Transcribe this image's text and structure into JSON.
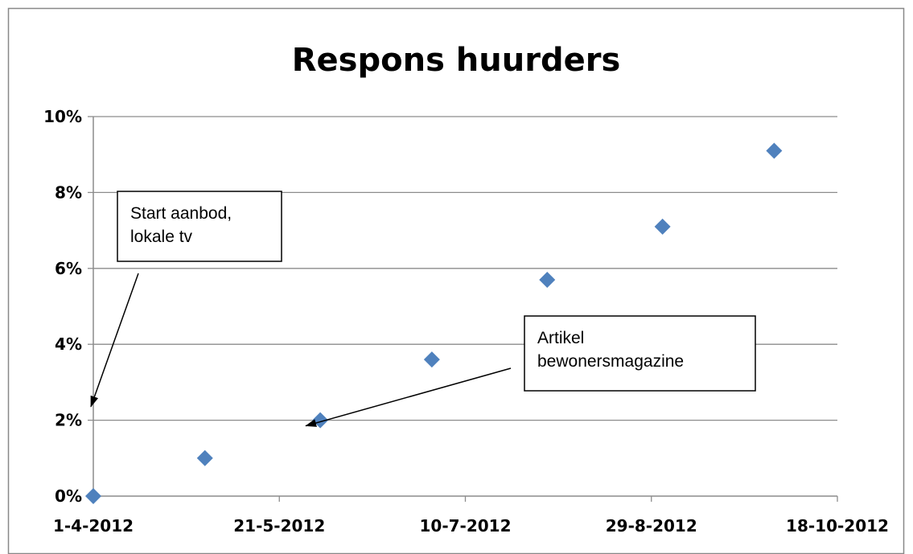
{
  "chart_data": {
    "type": "scatter",
    "title": "Respons huurders",
    "xlabel": "",
    "ylabel": "",
    "x_axis": {
      "type": "date",
      "min": "2012-04-01",
      "max": "2012-10-18",
      "tick_values": [
        "2012-04-01",
        "2012-05-21",
        "2012-07-10",
        "2012-08-29",
        "2012-10-18"
      ],
      "tick_labels": [
        "1-4-2012",
        "21-5-2012",
        "10-7-2012",
        "29-8-2012",
        "18-10-2012"
      ]
    },
    "y_axis": {
      "min": 0,
      "max": 10,
      "unit": "%",
      "tick_values": [
        0,
        2,
        4,
        6,
        8,
        10
      ],
      "tick_labels": [
        "0%",
        "2%",
        "4%",
        "6%",
        "8%",
        "10%"
      ]
    },
    "grid": {
      "horizontal": true,
      "vertical": false
    },
    "legend": "none",
    "series": [
      {
        "color": "#4F81BD",
        "marker": "diamond",
        "points": [
          {
            "x": "2012-04-01",
            "y": 0.0
          },
          {
            "x": "2012-05-01",
            "y": 1.0
          },
          {
            "x": "2012-06-01",
            "y": 2.0
          },
          {
            "x": "2012-07-01",
            "y": 3.6
          },
          {
            "x": "2012-08-01",
            "y": 5.7
          },
          {
            "x": "2012-09-01",
            "y": 7.1
          },
          {
            "x": "2012-10-01",
            "y": 9.1
          }
        ]
      }
    ],
    "annotations": [
      {
        "lines": [
          "Start aanbod,",
          "lokale tv"
        ],
        "target": {
          "x": "2012-04-01",
          "y": 2.4
        }
      },
      {
        "lines": [
          "Artikel",
          "bewonersmagazine"
        ],
        "target": {
          "x": "2012-06-01",
          "y": 2.0
        }
      }
    ]
  }
}
